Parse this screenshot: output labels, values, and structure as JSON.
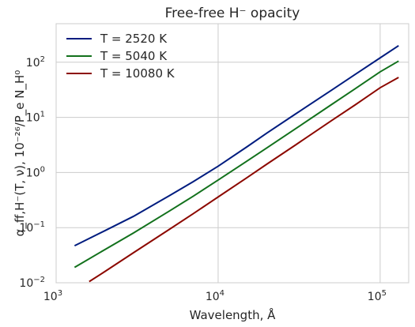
{
  "chart_data": {
    "type": "line",
    "title": "Free-free H⁻ opacity",
    "xlabel": "Wavelength, Å",
    "ylabel": "α_ff,H⁻(T, ν),   10⁻²⁶/P_e N_H⁰",
    "xscale": "log",
    "yscale": "log",
    "xlim": [
      1000,
      150000
    ],
    "ylim": [
      0.01,
      500
    ],
    "grid": true,
    "legend_position": "top-left",
    "x_ticks": [
      {
        "value": 1000,
        "base": "10",
        "exp": "3"
      },
      {
        "value": 10000,
        "base": "10",
        "exp": "4"
      },
      {
        "value": 100000,
        "base": "10",
        "exp": "5"
      }
    ],
    "y_ticks": [
      {
        "value": 0.01,
        "base": "10",
        "exp": "−2"
      },
      {
        "value": 0.1,
        "base": "10",
        "exp": "−1"
      },
      {
        "value": 1,
        "base": "10",
        "exp": "0"
      },
      {
        "value": 10,
        "base": "10",
        "exp": "1"
      },
      {
        "value": 100,
        "base": "10",
        "exp": "2"
      }
    ],
    "series": [
      {
        "name": "T = 2520 K",
        "color": "#001c7f",
        "x": [
          1300,
          2000,
          3000,
          5000,
          7000,
          10000,
          15000,
          20000,
          30000,
          50000,
          70000,
          100000,
          130000
        ],
        "y": [
          0.047,
          0.088,
          0.16,
          0.38,
          0.68,
          1.3,
          2.9,
          5.2,
          11.5,
          31,
          60,
          120,
          200
        ]
      },
      {
        "name": "T = 5040 K",
        "color": "#12711c",
        "x": [
          1300,
          2000,
          3000,
          5000,
          7000,
          10000,
          15000,
          20000,
          30000,
          50000,
          70000,
          100000,
          130000
        ],
        "y": [
          0.019,
          0.04,
          0.08,
          0.2,
          0.37,
          0.73,
          1.6,
          2.8,
          6.2,
          17,
          33,
          67,
          105
        ]
      },
      {
        "name": "T = 10080 K",
        "color": "#8c0800",
        "x": [
          1600,
          2000,
          3000,
          5000,
          7000,
          10000,
          15000,
          20000,
          30000,
          50000,
          70000,
          100000,
          130000
        ],
        "y": [
          0.0105,
          0.016,
          0.035,
          0.093,
          0.178,
          0.36,
          0.8,
          1.42,
          3.15,
          8.7,
          16.8,
          34.5,
          53
        ]
      }
    ]
  }
}
